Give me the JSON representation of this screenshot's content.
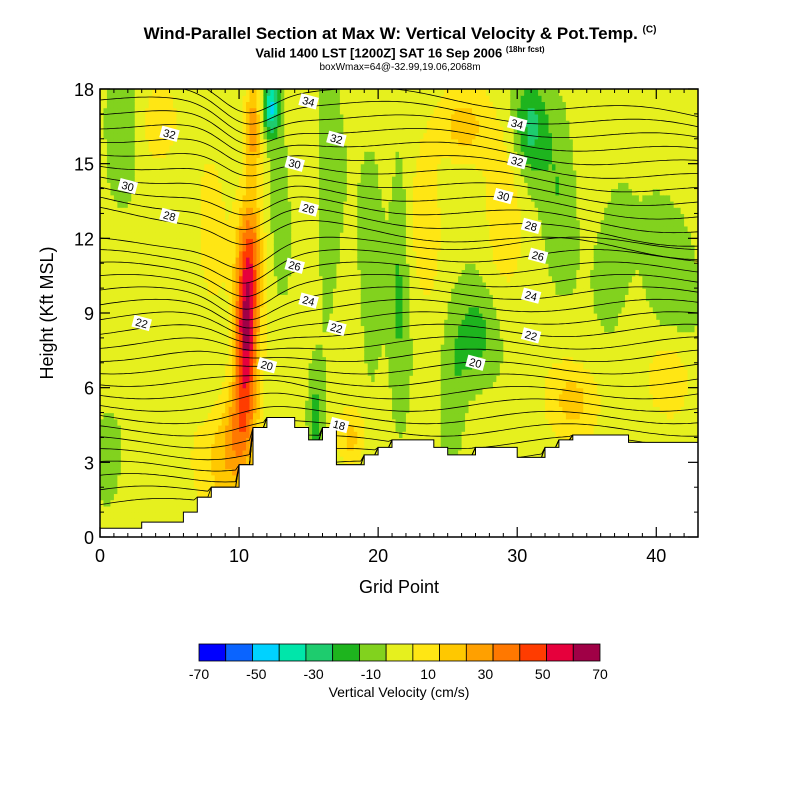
{
  "chart_data": {
    "type": "heatmap",
    "title": "Wind-Parallel Section at Max W: Vertical Velocity & Pot.Temp.",
    "title_mark": "(C)",
    "subtitle": "Valid 1400 LST [1200Z] SAT 16 Sep 2006",
    "subtitle_note": "(18hr fcst)",
    "info": "boxWmax=64@-32.99,19.06,2068m",
    "xlabel": "Grid Point",
    "ylabel": "Height (Kft MSL)",
    "xlim": [
      0,
      43
    ],
    "ylim": [
      0,
      18
    ],
    "xticks": [
      0,
      10,
      20,
      30,
      40
    ],
    "yticks": [
      0,
      3,
      6,
      9,
      12,
      15,
      18
    ],
    "colorbar": {
      "label": "Vertical Velocity (cm/s)",
      "ticks": [
        -70,
        -50,
        -30,
        -10,
        10,
        30,
        50,
        70
      ],
      "levels": [
        -70,
        -60,
        -50,
        -40,
        -30,
        -20,
        -10,
        0,
        10,
        20,
        30,
        40,
        50,
        60,
        70
      ],
      "colors": [
        "#0000ff",
        "#0a64ff",
        "#00d2ff",
        "#00e6aa",
        "#1ecc6e",
        "#1eb41e",
        "#82d21e",
        "#e6f01e",
        "#ffe614",
        "#ffc800",
        "#ffa000",
        "#ff7800",
        "#ff3c00",
        "#e6003c",
        "#a00046"
      ]
    },
    "terrain": [
      [
        0,
        0.35
      ],
      [
        3,
        0.35
      ],
      [
        3,
        0.6
      ],
      [
        6,
        0.6
      ],
      [
        6,
        1.0
      ],
      [
        7,
        1.0
      ],
      [
        7,
        1.6
      ],
      [
        8,
        1.6
      ],
      [
        8,
        2.0
      ],
      [
        10,
        2.0
      ],
      [
        10,
        2.9
      ],
      [
        11,
        2.9
      ],
      [
        11,
        4.4
      ],
      [
        12,
        4.4
      ],
      [
        12,
        4.8
      ],
      [
        14,
        4.8
      ],
      [
        14,
        4.4
      ],
      [
        15,
        4.4
      ],
      [
        15,
        3.9
      ],
      [
        16,
        3.9
      ],
      [
        16,
        4.4
      ],
      [
        17,
        4.4
      ],
      [
        17,
        2.9
      ],
      [
        19,
        2.9
      ],
      [
        19,
        3.3
      ],
      [
        20,
        3.3
      ],
      [
        20,
        3.6
      ],
      [
        21,
        3.6
      ],
      [
        21,
        3.9
      ],
      [
        24,
        3.9
      ],
      [
        24,
        3.6
      ],
      [
        25,
        3.6
      ],
      [
        25,
        3.3
      ],
      [
        27,
        3.3
      ],
      [
        27,
        3.6
      ],
      [
        30,
        3.6
      ],
      [
        30,
        3.2
      ],
      [
        32,
        3.2
      ],
      [
        32,
        3.6
      ],
      [
        33,
        3.6
      ],
      [
        33,
        3.9
      ],
      [
        34,
        3.9
      ],
      [
        34,
        4.1
      ],
      [
        38,
        4.1
      ],
      [
        38,
        3.8
      ],
      [
        43,
        3.8
      ]
    ],
    "isentropes": [
      {
        "value": 18,
        "label_at": [
          17.2,
          4.5
        ]
      },
      {
        "value": 20,
        "label_at": [
          12,
          6.9
        ]
      },
      {
        "value": 20,
        "label_at": [
          27,
          7.0
        ]
      },
      {
        "value": 22,
        "label_at": [
          3,
          8.6
        ]
      },
      {
        "value": 22,
        "label_at": [
          17,
          8.4
        ]
      },
      {
        "value": 22,
        "label_at": [
          31,
          8.1
        ]
      },
      {
        "value": 24,
        "label_at": [
          15,
          9.5
        ]
      },
      {
        "value": 24,
        "label_at": [
          31,
          9.7
        ]
      },
      {
        "value": 26,
        "label_at": [
          14,
          10.9
        ]
      },
      {
        "value": 26,
        "label_at": [
          31.5,
          11.3
        ]
      },
      {
        "value": 26,
        "label_at": [
          15,
          13.2
        ]
      },
      {
        "value": 28,
        "label_at": [
          5,
          12.9
        ]
      },
      {
        "value": 28,
        "label_at": [
          31,
          12.5
        ]
      },
      {
        "value": 30,
        "label_at": [
          2,
          14.1
        ]
      },
      {
        "value": 30,
        "label_at": [
          14,
          15.0
        ]
      },
      {
        "value": 30,
        "label_at": [
          29,
          13.7
        ]
      },
      {
        "value": 32,
        "label_at": [
          5,
          16.2
        ]
      },
      {
        "value": 32,
        "label_at": [
          17,
          16.0
        ]
      },
      {
        "value": 32,
        "label_at": [
          30,
          15.1
        ]
      },
      {
        "value": 34,
        "label_at": [
          15,
          17.5
        ]
      },
      {
        "value": 34,
        "label_at": [
          30,
          16.6
        ]
      }
    ],
    "w_features": [
      {
        "x": 10.5,
        "y": 8.0,
        "sx": 0.8,
        "sy": 3.0,
        "a": 62
      },
      {
        "x": 10.8,
        "y": 11.5,
        "sx": 0.9,
        "sy": 2.6,
        "a": 38
      },
      {
        "x": 10.0,
        "y": 4.5,
        "sx": 1.2,
        "sy": 2.0,
        "a": 30
      },
      {
        "x": 11.0,
        "y": 16.5,
        "sx": 0.6,
        "sy": 2.0,
        "a": 32
      },
      {
        "x": 9.0,
        "y": 3.0,
        "sx": 2.0,
        "sy": 2.0,
        "a": 18
      },
      {
        "x": 12.3,
        "y": 17.3,
        "sx": 0.6,
        "sy": 1.2,
        "a": -45
      },
      {
        "x": 13.0,
        "y": 14.0,
        "sx": 0.8,
        "sy": 4.0,
        "a": -8
      },
      {
        "x": 15.5,
        "y": 4.5,
        "sx": 0.5,
        "sy": 1.8,
        "a": -20
      },
      {
        "x": 16.5,
        "y": 13.0,
        "sx": 1.0,
        "sy": 5.0,
        "a": -10
      },
      {
        "x": 18.0,
        "y": 4.0,
        "sx": 1.0,
        "sy": 1.2,
        "a": 20
      },
      {
        "x": 19.5,
        "y": 10.5,
        "sx": 0.8,
        "sy": 5.0,
        "a": -12
      },
      {
        "x": 21.5,
        "y": 10.0,
        "sx": 0.7,
        "sy": 6.0,
        "a": -14
      },
      {
        "x": 27.0,
        "y": 8.0,
        "sx": 1.4,
        "sy": 2.0,
        "a": -18
      },
      {
        "x": 25.5,
        "y": 6.5,
        "sx": 1.0,
        "sy": 3.0,
        "a": -12
      },
      {
        "x": 26.0,
        "y": 16.5,
        "sx": 2.0,
        "sy": 1.5,
        "a": 20
      },
      {
        "x": 29.0,
        "y": 13.0,
        "sx": 1.2,
        "sy": 3.0,
        "a": 14
      },
      {
        "x": 31.0,
        "y": 16.5,
        "sx": 1.2,
        "sy": 2.0,
        "a": -25
      },
      {
        "x": 33.0,
        "y": 14.0,
        "sx": 1.2,
        "sy": 4.0,
        "a": -12
      },
      {
        "x": 34.0,
        "y": 5.5,
        "sx": 2.0,
        "sy": 1.5,
        "a": 18
      },
      {
        "x": 37.0,
        "y": 11.5,
        "sx": 1.5,
        "sy": 3.0,
        "a": -10
      },
      {
        "x": 41.0,
        "y": 10.5,
        "sx": 2.0,
        "sy": 3.0,
        "a": -10
      },
      {
        "x": 41.0,
        "y": 6.5,
        "sx": 1.5,
        "sy": 1.5,
        "a": 15
      },
      {
        "x": 1.5,
        "y": 16.0,
        "sx": 1.2,
        "sy": 3.0,
        "a": -14
      },
      {
        "x": 0.5,
        "y": 3.0,
        "sx": 1.0,
        "sy": 2.0,
        "a": -12
      },
      {
        "x": 4.0,
        "y": 16.5,
        "sx": 1.5,
        "sy": 2.0,
        "a": 12
      },
      {
        "x": 8.0,
        "y": 12.0,
        "sx": 1.0,
        "sy": 3.0,
        "a": 12
      },
      {
        "x": 23.5,
        "y": 13.0,
        "sx": 1.0,
        "sy": 3.0,
        "a": 14
      }
    ]
  }
}
